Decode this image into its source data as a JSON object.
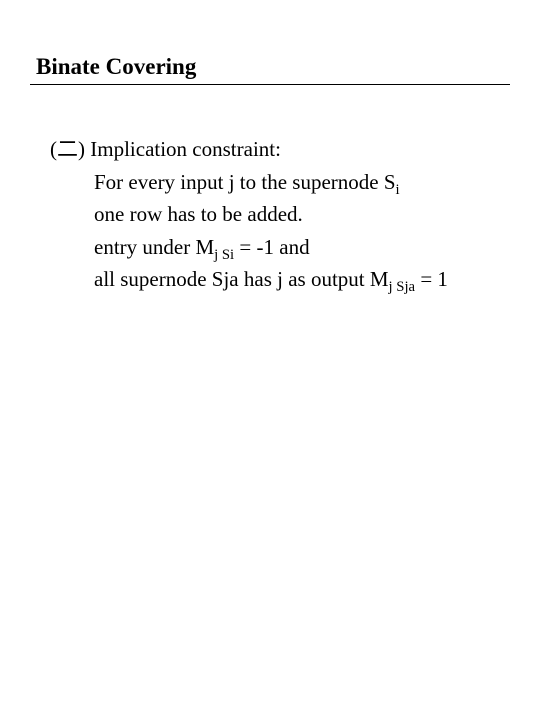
{
  "title": "Binate Covering",
  "bullet": "(二)",
  "lines": {
    "l1a": "Implication constraint:",
    "l2a": "For every input j to the supernode S",
    "l2sub": "i",
    "l3": "one row has to be added.",
    "l4a": "entry under M",
    "l4sub": "j Si",
    "l4b": " = -1 and",
    "l5a": "all supernode Sja has j as output M",
    "l5sub": "j Sja",
    "l5b": " = 1"
  }
}
